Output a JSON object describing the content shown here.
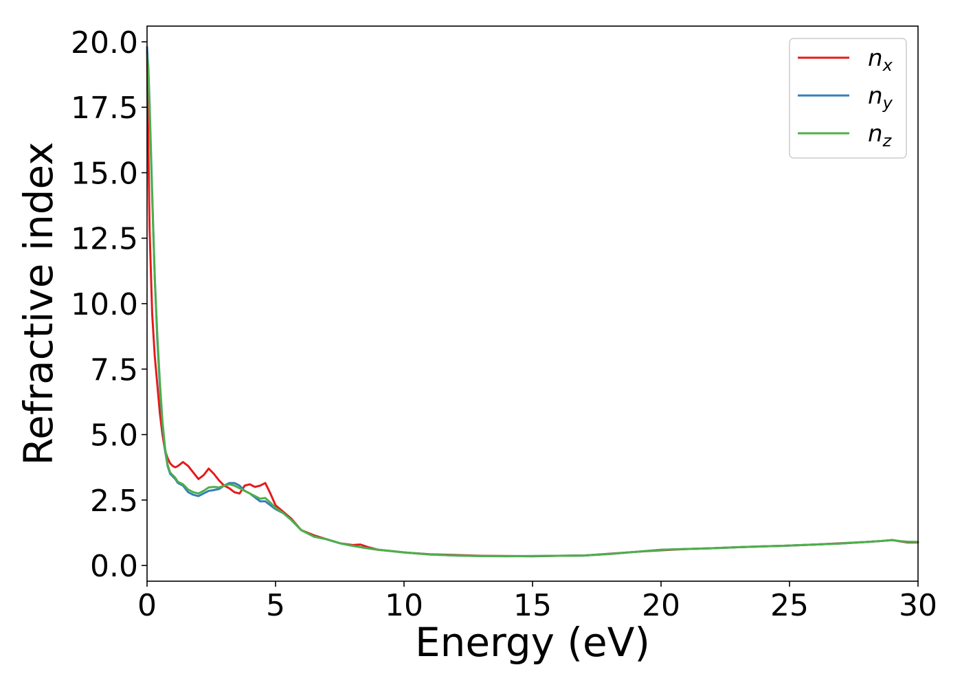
{
  "chart_data": {
    "type": "line",
    "xlabel": "Energy (eV)",
    "ylabel": "Refractive index",
    "xlim": [
      0,
      30
    ],
    "ylim": [
      -0.6,
      20.6
    ],
    "xticks": [
      0,
      5,
      10,
      15,
      20,
      25,
      30
    ],
    "xtick_labels": [
      "0",
      "5",
      "10",
      "15",
      "20",
      "25",
      "30"
    ],
    "yticks": [
      0.0,
      2.5,
      5.0,
      7.5,
      10.0,
      12.5,
      15.0,
      17.5,
      20.0
    ],
    "ytick_labels": [
      "0.0",
      "2.5",
      "5.0",
      "7.5",
      "10.0",
      "12.5",
      "15.0",
      "17.5",
      "20.0"
    ],
    "grid": false,
    "legend_position": "top-right",
    "series": [
      {
        "name": "n_x",
        "label_main": "n",
        "label_sub": "x",
        "color": "#e41a1c",
        "x": [
          0.0,
          0.05,
          0.1,
          0.2,
          0.3,
          0.4,
          0.5,
          0.6,
          0.7,
          0.8,
          0.9,
          1.0,
          1.1,
          1.2,
          1.4,
          1.6,
          1.8,
          2.0,
          2.2,
          2.4,
          2.6,
          2.8,
          3.0,
          3.2,
          3.4,
          3.6,
          3.8,
          4.0,
          4.2,
          4.4,
          4.6,
          4.8,
          5.0,
          5.3,
          5.6,
          6.0,
          6.5,
          7.0,
          7.5,
          8.0,
          8.3,
          8.6,
          9.0,
          9.5,
          10.0,
          11.0,
          12.0,
          13.0,
          14.0,
          15.0,
          16.0,
          17.0,
          18.0,
          19.0,
          20.0,
          21.0,
          22.0,
          23.0,
          24.0,
          25.0,
          26.0,
          27.0,
          28.0,
          28.5,
          29.0,
          29.3,
          29.6,
          30.0
        ],
        "y": [
          19.8,
          16.0,
          12.8,
          9.6,
          8.0,
          6.9,
          5.8,
          5.0,
          4.4,
          4.1,
          3.9,
          3.8,
          3.75,
          3.8,
          3.95,
          3.8,
          3.55,
          3.3,
          3.45,
          3.7,
          3.5,
          3.25,
          3.05,
          2.95,
          2.8,
          2.75,
          3.05,
          3.1,
          3.0,
          3.05,
          3.15,
          2.75,
          2.3,
          2.05,
          1.8,
          1.35,
          1.15,
          1.0,
          0.85,
          0.78,
          0.8,
          0.7,
          0.6,
          0.55,
          0.5,
          0.43,
          0.4,
          0.37,
          0.36,
          0.35,
          0.37,
          0.38,
          0.45,
          0.52,
          0.58,
          0.63,
          0.66,
          0.7,
          0.73,
          0.76,
          0.8,
          0.85,
          0.9,
          0.93,
          0.97,
          0.92,
          0.88,
          0.88
        ]
      },
      {
        "name": "n_y",
        "label_main": "n",
        "label_sub": "y",
        "color": "#377eb8",
        "x": [
          0.0,
          0.05,
          0.1,
          0.2,
          0.3,
          0.4,
          0.5,
          0.6,
          0.7,
          0.8,
          0.9,
          1.0,
          1.1,
          1.2,
          1.4,
          1.6,
          1.8,
          2.0,
          2.2,
          2.4,
          2.6,
          2.8,
          3.0,
          3.2,
          3.4,
          3.6,
          3.8,
          4.0,
          4.2,
          4.4,
          4.6,
          4.8,
          5.0,
          5.3,
          5.6,
          6.0,
          6.5,
          7.0,
          7.5,
          8.0,
          8.5,
          9.0,
          9.5,
          10.0,
          11.0,
          12.0,
          13.0,
          14.0,
          15.0,
          16.0,
          17.0,
          18.0,
          19.0,
          20.0,
          21.0,
          22.0,
          23.0,
          24.0,
          25.0,
          26.0,
          27.0,
          28.0,
          28.5,
          29.0,
          29.3,
          29.6,
          30.0
        ],
        "y": [
          19.8,
          19.0,
          17.6,
          14.2,
          11.0,
          8.6,
          6.8,
          5.4,
          4.4,
          3.8,
          3.5,
          3.4,
          3.3,
          3.15,
          3.05,
          2.8,
          2.7,
          2.65,
          2.75,
          2.85,
          2.88,
          2.92,
          3.05,
          3.15,
          3.15,
          3.05,
          2.85,
          2.75,
          2.6,
          2.45,
          2.45,
          2.3,
          2.15,
          2.0,
          1.75,
          1.35,
          1.1,
          1.0,
          0.85,
          0.75,
          0.67,
          0.6,
          0.55,
          0.5,
          0.42,
          0.38,
          0.36,
          0.36,
          0.36,
          0.37,
          0.38,
          0.44,
          0.52,
          0.6,
          0.63,
          0.66,
          0.7,
          0.73,
          0.76,
          0.8,
          0.84,
          0.9,
          0.93,
          0.97,
          0.93,
          0.9,
          0.9
        ]
      },
      {
        "name": "n_z",
        "label_main": "n",
        "label_sub": "z",
        "color": "#4daf4a",
        "x": [
          0.0,
          0.05,
          0.1,
          0.2,
          0.3,
          0.4,
          0.5,
          0.6,
          0.7,
          0.8,
          0.9,
          1.0,
          1.1,
          1.2,
          1.4,
          1.6,
          1.8,
          2.0,
          2.2,
          2.4,
          2.6,
          2.8,
          3.0,
          3.2,
          3.4,
          3.6,
          3.8,
          4.0,
          4.2,
          4.4,
          4.6,
          4.8,
          5.0,
          5.3,
          5.6,
          6.0,
          6.5,
          7.0,
          7.5,
          8.0,
          8.5,
          9.0,
          9.5,
          10.0,
          11.0,
          12.0,
          13.0,
          14.0,
          15.0,
          16.0,
          17.0,
          18.0,
          19.0,
          20.0,
          21.0,
          22.0,
          23.0,
          24.0,
          25.0,
          26.0,
          27.0,
          28.0,
          28.5,
          29.0,
          29.3,
          29.6,
          30.0
        ],
        "y": [
          19.5,
          18.8,
          17.4,
          14.0,
          11.0,
          8.8,
          7.0,
          5.5,
          4.5,
          3.85,
          3.55,
          3.45,
          3.35,
          3.2,
          3.1,
          2.9,
          2.8,
          2.75,
          2.85,
          2.98,
          3.0,
          2.98,
          3.05,
          3.1,
          3.05,
          2.95,
          2.85,
          2.75,
          2.65,
          2.55,
          2.58,
          2.4,
          2.2,
          2.0,
          1.75,
          1.35,
          1.1,
          1.0,
          0.85,
          0.75,
          0.67,
          0.6,
          0.55,
          0.5,
          0.42,
          0.38,
          0.36,
          0.35,
          0.36,
          0.37,
          0.38,
          0.44,
          0.52,
          0.6,
          0.63,
          0.66,
          0.7,
          0.73,
          0.76,
          0.8,
          0.84,
          0.9,
          0.93,
          0.97,
          0.93,
          0.91,
          0.9
        ]
      }
    ]
  }
}
